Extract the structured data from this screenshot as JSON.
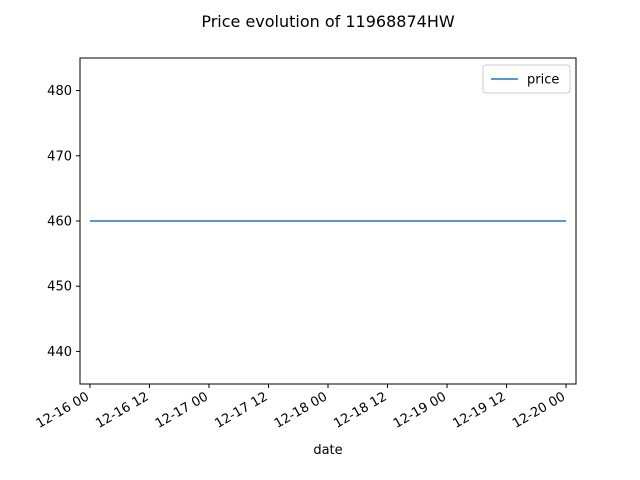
{
  "chart_data": {
    "type": "line",
    "title": "Price evolution of 11968874HW",
    "xlabel": "date",
    "ylabel": "",
    "x": [
      "2023-12-16 00:00",
      "2023-12-20 00:00"
    ],
    "series": [
      {
        "name": "price",
        "color": "#1f77b4",
        "values": [
          460,
          460
        ]
      }
    ],
    "xlim": [
      "2023-12-15 22:00",
      "2023-12-20 02:00"
    ],
    "ylim": [
      435,
      485
    ],
    "xticks": [
      "2023-12-16 00:00",
      "2023-12-16 12:00",
      "2023-12-17 00:00",
      "2023-12-17 12:00",
      "2023-12-18 00:00",
      "2023-12-18 12:00",
      "2023-12-19 00:00",
      "2023-12-19 12:00",
      "2023-12-20 00:00"
    ],
    "xtick_labels": [
      "12-16 00",
      "12-16 12",
      "12-17 00",
      "12-17 12",
      "12-18 00",
      "12-18 12",
      "12-19 00",
      "12-19 12",
      "12-20 00"
    ],
    "yticks": [
      440,
      450,
      460,
      470,
      480
    ],
    "ytick_labels": [
      "440",
      "450",
      "460",
      "470",
      "480"
    ],
    "grid": false,
    "legend": "top-right"
  }
}
